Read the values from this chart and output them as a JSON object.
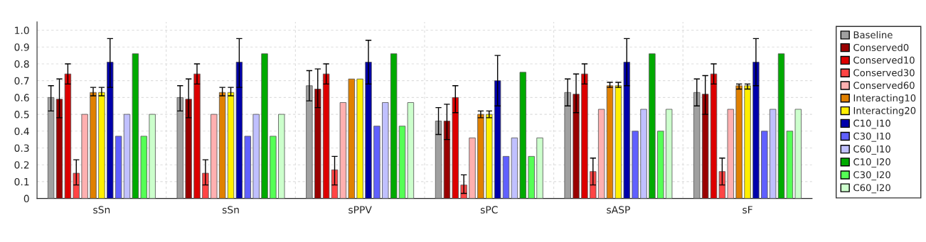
{
  "chart_data": {
    "type": "bar",
    "categories": [
      "sSn",
      "sSn",
      "sPPV",
      "sPC",
      "sASP",
      "sF"
    ],
    "ylim": [
      0,
      1.05
    ],
    "yticks": [
      0,
      0.1,
      0.2,
      0.3,
      0.4,
      0.5,
      0.6,
      0.7,
      0.8,
      0.9,
      {
        "value": 1,
        "label": "1.0"
      }
    ],
    "grid": true,
    "legend": "right",
    "series": [
      {
        "name": "Baseline",
        "color": "#a0a0a0",
        "values": [
          0.6,
          0.6,
          0.67,
          0.46,
          0.63,
          0.63
        ],
        "errors": [
          [
            0.52,
            0.67
          ],
          [
            0.52,
            0.67
          ],
          [
            0.58,
            0.76
          ],
          [
            0.38,
            0.54
          ],
          [
            0.55,
            0.71
          ],
          [
            0.55,
            0.71
          ]
        ]
      },
      {
        "name": "Conserved0",
        "color": "#990000",
        "values": [
          0.59,
          0.59,
          0.65,
          0.46,
          0.62,
          0.62
        ],
        "errors": [
          [
            0.48,
            0.71
          ],
          [
            0.48,
            0.71
          ],
          [
            0.54,
            0.77
          ],
          [
            0.35,
            0.56
          ],
          [
            0.51,
            0.74
          ],
          [
            0.5,
            0.73
          ]
        ]
      },
      {
        "name": "Conserved10",
        "color": "#dd0000",
        "values": [
          0.74,
          0.74,
          0.74,
          0.6,
          0.74,
          0.74
        ],
        "errors": [
          [
            0.68,
            0.8
          ],
          [
            0.68,
            0.8
          ],
          [
            0.68,
            0.8
          ],
          [
            0.51,
            0.67
          ],
          [
            0.68,
            0.8
          ],
          [
            0.68,
            0.8
          ]
        ]
      },
      {
        "name": "Conserved30",
        "color": "#ff4444",
        "values": [
          0.15,
          0.15,
          0.17,
          0.08,
          0.16,
          0.16
        ],
        "errors": [
          [
            0.08,
            0.23
          ],
          [
            0.08,
            0.23
          ],
          [
            0.08,
            0.25
          ],
          [
            0.03,
            0.14
          ],
          [
            0.08,
            0.24
          ],
          [
            0.08,
            0.24
          ]
        ]
      },
      {
        "name": "Conserved60",
        "color": "#ffb0b0",
        "values": [
          0.5,
          0.5,
          0.57,
          0.36,
          0.53,
          0.53
        ]
      },
      {
        "name": "Interacting10",
        "color": "#e08000",
        "values": [
          0.63,
          0.63,
          0.71,
          0.5,
          0.67,
          0.67
        ],
        "errors": [
          [
            0.61,
            0.66
          ],
          [
            0.61,
            0.66
          ],
          null,
          [
            0.48,
            0.52
          ],
          [
            0.66,
            0.69
          ],
          [
            0.65,
            0.68
          ]
        ]
      },
      {
        "name": "Interacting20",
        "color": "#ffee00",
        "values": [
          0.63,
          0.63,
          0.71,
          0.5,
          0.67,
          0.67
        ],
        "errors": [
          [
            0.61,
            0.66
          ],
          [
            0.61,
            0.66
          ],
          null,
          [
            0.48,
            0.52
          ],
          [
            0.66,
            0.69
          ],
          [
            0.65,
            0.68
          ]
        ]
      },
      {
        "name": "C10_I10",
        "color": "#0000aa",
        "values": [
          0.81,
          0.81,
          0.81,
          0.7,
          0.81,
          0.81
        ],
        "errors": [
          [
            0.66,
            0.95
          ],
          [
            0.66,
            0.95
          ],
          [
            0.68,
            0.94
          ],
          [
            0.55,
            0.85
          ],
          [
            0.67,
            0.95
          ],
          [
            0.67,
            0.95
          ]
        ]
      },
      {
        "name": "C30_I10",
        "color": "#6060ff",
        "values": [
          0.37,
          0.37,
          0.43,
          0.25,
          0.4,
          0.4
        ]
      },
      {
        "name": "C60_I10",
        "color": "#c0c0ff",
        "values": [
          0.5,
          0.5,
          0.57,
          0.36,
          0.53,
          0.53
        ]
      },
      {
        "name": "C10_I20",
        "color": "#00aa00",
        "values": [
          0.86,
          0.86,
          0.86,
          0.75,
          0.86,
          0.86
        ]
      },
      {
        "name": "C30_I20",
        "color": "#55ff55",
        "values": [
          0.37,
          0.37,
          0.43,
          0.25,
          0.4,
          0.4
        ]
      },
      {
        "name": "C60_I20",
        "color": "#ccffcc",
        "values": [
          0.5,
          0.5,
          0.57,
          0.36,
          0.53,
          0.53
        ]
      }
    ]
  }
}
